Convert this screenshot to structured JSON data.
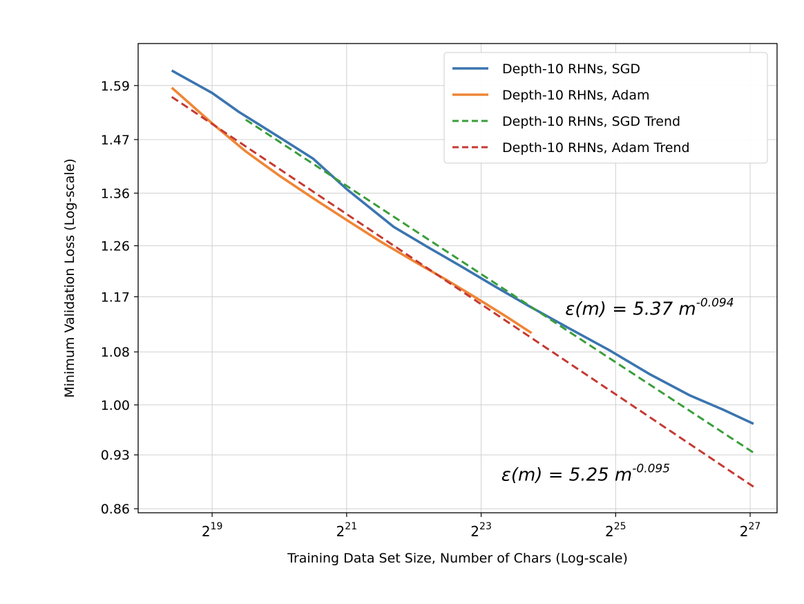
{
  "chart_data": {
    "type": "line",
    "title": "",
    "xlabel": "Training Data Set Size, Number of Chars (Log-scale)",
    "ylabel": "Minimum Validation Loss (Log-scale)",
    "x_scale": "log2",
    "y_scale": "log",
    "xlim_log2": [
      17.9,
      27.4
    ],
    "ylim": [
      0.855,
      1.69
    ],
    "x_ticks": [
      {
        "exp": 19,
        "base": "2",
        "sup": "19"
      },
      {
        "exp": 21,
        "base": "2",
        "sup": "21"
      },
      {
        "exp": 23,
        "base": "2",
        "sup": "23"
      },
      {
        "exp": 25,
        "base": "2",
        "sup": "25"
      },
      {
        "exp": 27,
        "base": "2",
        "sup": "27"
      }
    ],
    "y_ticks": [
      {
        "value": 0.86,
        "label": "0.86"
      },
      {
        "value": 0.93,
        "label": "0.93"
      },
      {
        "value": 1.0,
        "label": "1.00"
      },
      {
        "value": 1.08,
        "label": "1.08"
      },
      {
        "value": 1.17,
        "label": "1.17"
      },
      {
        "value": 1.26,
        "label": "1.26"
      },
      {
        "value": 1.36,
        "label": "1.36"
      },
      {
        "value": 1.47,
        "label": "1.47"
      },
      {
        "value": 1.59,
        "label": "1.59"
      }
    ],
    "grid": true,
    "legend_position": "top-right",
    "series": [
      {
        "name": "Depth-10 RHNs, SGD",
        "color": "#3b75af",
        "style": "solid",
        "points": [
          [
            18.4,
            1.625
          ],
          [
            19.0,
            1.573
          ],
          [
            19.4,
            1.53
          ],
          [
            20.0,
            1.475
          ],
          [
            20.5,
            1.43
          ],
          [
            21.0,
            1.368
          ],
          [
            21.7,
            1.295
          ],
          [
            22.2,
            1.258
          ],
          [
            22.7,
            1.223
          ],
          [
            23.2,
            1.188
          ],
          [
            23.7,
            1.155
          ],
          [
            24.3,
            1.118
          ],
          [
            24.9,
            1.083
          ],
          [
            25.5,
            1.046
          ],
          [
            26.1,
            1.014
          ],
          [
            26.6,
            0.993
          ],
          [
            27.05,
            0.973
          ]
        ]
      },
      {
        "name": "Depth-10 RHNs, Adam",
        "color": "#ef8636",
        "style": "solid",
        "points": [
          [
            18.4,
            1.585
          ],
          [
            19.0,
            1.505
          ],
          [
            19.5,
            1.445
          ],
          [
            20.0,
            1.395
          ],
          [
            20.5,
            1.35
          ],
          [
            21.0,
            1.308
          ],
          [
            21.5,
            1.268
          ],
          [
            22.0,
            1.232
          ],
          [
            22.5,
            1.198
          ],
          [
            23.0,
            1.163
          ],
          [
            23.4,
            1.135
          ],
          [
            23.75,
            1.11
          ]
        ]
      },
      {
        "name": "Depth-10 RHNs, SGD Trend",
        "color": "#3a9e3a",
        "style": "dashed",
        "points": [
          [
            19.5,
            1.513
          ],
          [
            27.05,
            0.933
          ]
        ]
      },
      {
        "name": "Depth-10 RHNs, Adam Trend",
        "color": "#c53a32",
        "style": "dashed",
        "points": [
          [
            18.4,
            1.564
          ],
          [
            27.05,
            0.888
          ]
        ]
      }
    ],
    "annotations": [
      {
        "prefix": "ε(m) = 5.37 m",
        "exponent": "-0.094",
        "anchor": [
          24.25,
          1.14
        ]
      },
      {
        "prefix": "ε(m) = 5.25 m",
        "exponent": "-0.095",
        "anchor": [
          23.3,
          0.896
        ]
      }
    ]
  }
}
